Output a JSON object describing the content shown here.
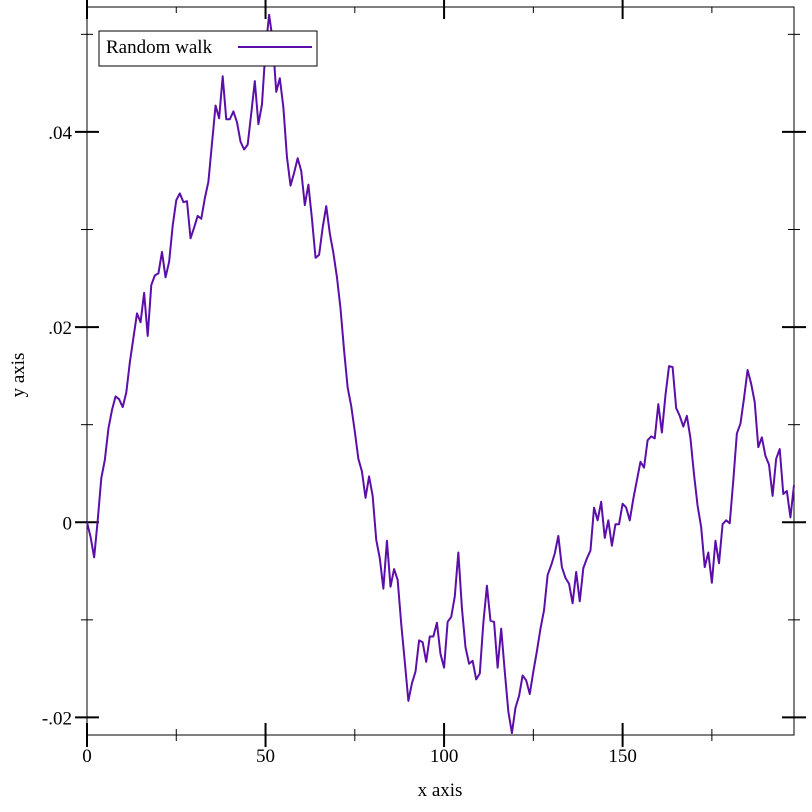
{
  "chart_data": {
    "type": "line",
    "xlabel": "x axis",
    "ylabel": "y axis",
    "x": [
      0,
      1,
      2,
      3,
      4,
      5,
      6,
      7,
      8,
      9,
      10,
      11,
      12,
      13,
      14,
      15,
      16,
      17,
      18,
      19,
      20,
      21,
      22,
      23,
      24,
      25,
      26,
      27,
      28,
      29,
      30,
      31,
      32,
      33,
      34,
      35,
      36,
      37,
      38,
      39,
      40,
      41,
      42,
      43,
      44,
      45,
      46,
      47,
      48,
      49,
      50,
      51,
      52,
      53,
      54,
      55,
      56,
      57,
      58,
      59,
      60,
      61,
      62,
      63,
      64,
      65,
      66,
      67,
      68,
      69,
      70,
      71,
      72,
      73,
      74,
      75,
      76,
      77,
      78,
      79,
      80,
      81,
      82,
      83,
      84,
      85,
      86,
      87,
      88,
      89,
      90,
      91,
      92,
      93,
      94,
      95,
      96,
      97,
      98,
      99,
      100,
      101,
      102,
      103,
      104,
      105,
      106,
      107,
      108,
      109,
      110,
      111,
      112,
      113,
      114,
      115,
      116,
      117,
      118,
      119,
      120,
      121,
      122,
      123,
      124,
      125,
      126,
      127,
      128,
      129,
      130,
      131,
      132,
      133,
      134,
      135,
      136,
      137,
      138,
      139,
      140,
      141,
      142,
      143,
      144,
      145,
      146,
      147,
      148,
      149,
      150,
      151,
      152,
      153,
      154,
      155,
      156,
      157,
      158,
      159,
      160,
      161,
      162,
      163,
      164,
      165,
      166,
      167,
      168,
      169,
      170,
      171,
      172,
      173,
      174,
      175,
      176,
      177,
      178,
      179,
      180,
      181,
      182,
      183,
      184,
      185,
      186,
      187,
      188,
      189,
      190,
      191,
      192,
      193,
      194,
      195,
      196,
      197,
      198
    ],
    "series": [
      {
        "name": "Random walk",
        "color": "#5c0fa8",
        "values": [
          0,
          -0.0015,
          -0.0036,
          0.0002,
          0.0045,
          0.0064,
          0.0096,
          0.0115,
          0.0129,
          0.0126,
          0.0118,
          0.0133,
          0.0164,
          0.0189,
          0.0214,
          0.0205,
          0.0235,
          0.0191,
          0.0243,
          0.0253,
          0.0255,
          0.0277,
          0.0251,
          0.0267,
          0.0304,
          0.033,
          0.0337,
          0.0328,
          0.0329,
          0.0291,
          0.0302,
          0.0314,
          0.0311,
          0.0332,
          0.0349,
          0.0388,
          0.0427,
          0.0414,
          0.0457,
          0.0413,
          0.0413,
          0.0421,
          0.041,
          0.039,
          0.0382,
          0.0387,
          0.0419,
          0.0452,
          0.0408,
          0.0428,
          0.0485,
          0.052,
          0.0494,
          0.0441,
          0.0455,
          0.0425,
          0.0374,
          0.0345,
          0.0358,
          0.0373,
          0.036,
          0.0325,
          0.0346,
          0.0311,
          0.0271,
          0.0274,
          0.0302,
          0.0324,
          0.0296,
          0.0276,
          0.0251,
          0.0219,
          0.0176,
          0.0138,
          0.0119,
          0.0093,
          0.0065,
          0.0052,
          0.0025,
          0.0047,
          0.0027,
          -0.0018,
          -0.0037,
          -0.0068,
          -0.0019,
          -0.0066,
          -0.0048,
          -0.0059,
          -0.0104,
          -0.0143,
          -0.0183,
          -0.0165,
          -0.0153,
          -0.0121,
          -0.0123,
          -0.0143,
          -0.0117,
          -0.0117,
          -0.0103,
          -0.0135,
          -0.0149,
          -0.0102,
          -0.0097,
          -0.0076,
          -0.0031,
          -0.0088,
          -0.0128,
          -0.0145,
          -0.0142,
          -0.0161,
          -0.0155,
          -0.0103,
          -0.0065,
          -0.0101,
          -0.0102,
          -0.0149,
          -0.0109,
          -0.0153,
          -0.0194,
          -0.0216,
          -0.019,
          -0.0178,
          -0.0157,
          -0.0162,
          -0.0176,
          -0.0153,
          -0.0132,
          -0.0109,
          -0.009,
          -0.0054,
          -0.0044,
          -0.0032,
          -0.0014,
          -0.0046,
          -0.0057,
          -0.0063,
          -0.0083,
          -0.0051,
          -0.0081,
          -0.0047,
          -0.0037,
          -0.0029,
          0.0015,
          0.0002,
          0.0021,
          -0.0016,
          0.0002,
          -0.0024,
          -0.0002,
          -0.0002,
          0.0019,
          0.0015,
          0.0002,
          0.0024,
          0.0043,
          0.0062,
          0.0056,
          0.0084,
          0.0088,
          0.0086,
          0.0121,
          0.0092,
          0.013,
          0.016,
          0.0159,
          0.0117,
          0.0109,
          0.0098,
          0.0109,
          0.0086,
          0.0049,
          0.0017,
          -0.0005,
          -0.0046,
          -0.0031,
          -0.0062,
          -0.0019,
          -0.0042,
          -0.0002,
          0.0002,
          -0.0001,
          0.0043,
          0.0091,
          0.0101,
          0.0127,
          0.0156,
          0.0142,
          0.0123,
          0.0077,
          0.0087,
          0.0068,
          0.0059,
          0.0027,
          0.0065,
          0.0075,
          0.0029,
          0.0032,
          0.0005,
          0.0038
        ]
      }
    ],
    "xlim": [
      0,
      198
    ],
    "ylim": [
      -0.0218,
      0.0528
    ],
    "xticks": [
      0,
      50,
      100,
      150
    ],
    "yticks": [
      {
        "value": -0.02,
        "label": "-.02"
      },
      0,
      {
        "value": 0.02,
        "label": ".02"
      },
      {
        "value": 0.04,
        "label": ".04"
      }
    ],
    "xminor_ticks": [
      25,
      75,
      125,
      175
    ],
    "yminor_ticks": [
      -0.01,
      0.01,
      0.03,
      0.05
    ],
    "legend": "top-left"
  }
}
